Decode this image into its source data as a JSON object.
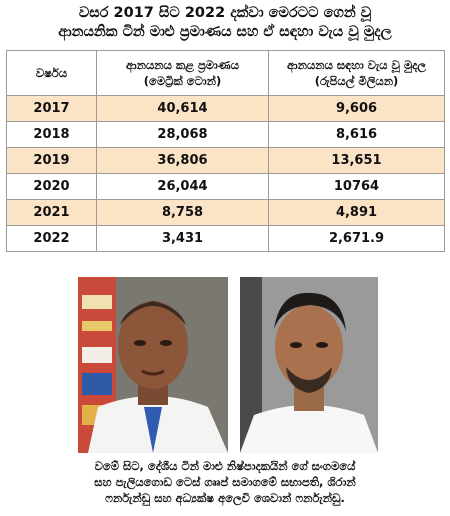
{
  "title": {
    "line1": "වසර 2017 සිට 2022 දක්වා මෙරටට ගෙන් වූ",
    "line2": "ආනයනික ටින් මාළු ප්‍රමාණය සහ ඒ සඳහා වැය වූ මුදල"
  },
  "table": {
    "headers": {
      "year": "වර්ෂය",
      "qty_line1": "ආනයනය කළ ප්‍රමාණය",
      "qty_line2": "(මෙට්‍රික් ටොන්)",
      "val_line1": "ආනයනය සඳහා වැය වූ මුදල",
      "val_line2": "(රුපියල් මිලියන)"
    },
    "rows": [
      {
        "year": "2017",
        "qty": "40,614",
        "value": "9,606"
      },
      {
        "year": "2018",
        "qty": "28,068",
        "value": "8,616"
      },
      {
        "year": "2019",
        "qty": "36,806",
        "value": "13,651"
      },
      {
        "year": "2020",
        "qty": "26,044",
        "value": "10764"
      },
      {
        "year": "2021",
        "qty": "8,758",
        "value": "4,891"
      },
      {
        "year": "2022",
        "qty": "3,431",
        "value": "2,671.9"
      }
    ]
  },
  "colors": {
    "row_shade": "#fbe3c6",
    "border": "#9a9a9a"
  },
  "caption": {
    "line1": "වමේ සිට, දේශීය ටින් මාළු නිෂ්පාදකයින් ගේ සංගමයේ",
    "line2": "සහ පැලියගොඩ ටෙස් ගෲප් සමාගමේ සභාපති, ශිරාන්",
    "line3": "ෆර්නැන්ඩු සහ අධ්‍යක්ෂ අලෙවි ශෙවාන් ෆර්නැන්ඩු."
  }
}
